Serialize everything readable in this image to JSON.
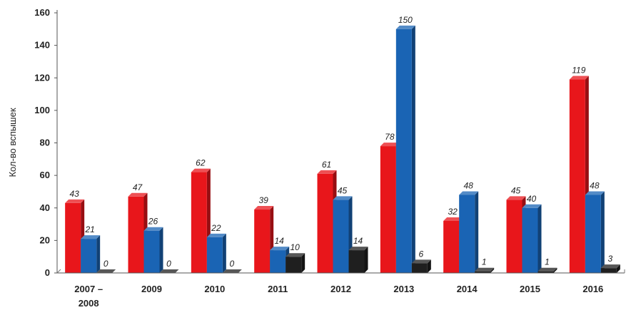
{
  "chart_data": {
    "type": "bar",
    "title": "",
    "xlabel": "",
    "ylabel": "Кол-во вспышек",
    "ylim": [
      0,
      160
    ],
    "yticks": [
      0,
      20,
      40,
      60,
      80,
      100,
      120,
      140,
      160
    ],
    "grid": false,
    "legend": "none",
    "categories": [
      [
        "2007 –",
        "2008"
      ],
      [
        "2009"
      ],
      [
        "2010"
      ],
      [
        "2011"
      ],
      [
        "2012"
      ],
      [
        "2013"
      ],
      [
        "2014"
      ],
      [
        "2015"
      ],
      [
        "2016"
      ]
    ],
    "series": [
      {
        "values": [
          43,
          47,
          62,
          39,
          61,
          78,
          32,
          45,
          119
        ],
        "color": "#e8161b"
      },
      {
        "values": [
          21,
          26,
          22,
          14,
          45,
          150,
          48,
          40,
          48
        ],
        "color": "#1a64b4"
      },
      {
        "values": [
          0,
          0,
          0,
          10,
          14,
          6,
          1,
          1,
          3
        ],
        "color": "#1f1f1f"
      }
    ]
  }
}
